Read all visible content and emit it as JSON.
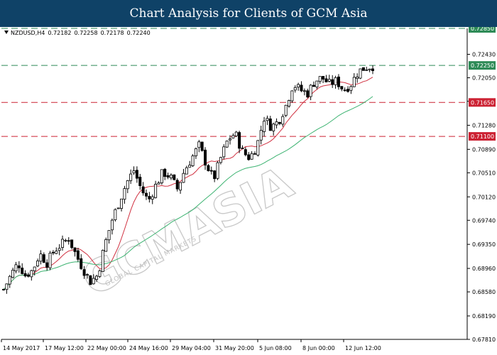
{
  "header": {
    "title": "Chart Analysis for Clients of GCM Asia"
  },
  "symbol": {
    "name": "NZDUSD,H4",
    "open": "0.72182",
    "high": "0.72258",
    "low": "0.72178",
    "close": "0.72240"
  },
  "watermark": {
    "main": "GCMASIA",
    "sub": "GLOBAL CAPITAL MARKETS"
  },
  "chart_data": {
    "type": "candlestick",
    "title": "",
    "xlabel": "",
    "ylabel": "",
    "ylim": [
      0.6781,
      0.7285
    ],
    "y_ticks": [
      "0.72430",
      "0.72050",
      "0.71670",
      "0.71280",
      "0.70890",
      "0.70510",
      "0.70120",
      "0.69740",
      "0.69350",
      "0.68960",
      "0.68580",
      "0.68190",
      "0.67810"
    ],
    "x_ticks": [
      "14 May 2017",
      "17 May 12:00",
      "22 May 00:00",
      "24 May 16:00",
      "29 May 04:00",
      "31 May 20:00",
      "5 Jun 08:00",
      "8 Jun 00:00",
      "12 Jun 12:00"
    ],
    "levels": [
      {
        "value": 0.7285,
        "label": "0.72850",
        "color": "#2e8b57",
        "style": "dashed-green"
      },
      {
        "value": 0.7225,
        "label": "0.72250",
        "color": "#2e8b57",
        "style": "dashed-green"
      },
      {
        "value": 0.7165,
        "label": "0.71650",
        "color": "#cc2233",
        "style": "dashed-red"
      },
      {
        "value": 0.711,
        "label": "0.71100",
        "color": "#cc2233",
        "style": "dashed-red"
      }
    ],
    "close_path": [
      0.6862,
      0.6885,
      0.6905,
      0.6885,
      0.6893,
      0.692,
      0.6905,
      0.6925,
      0.6935,
      0.6945,
      0.6918,
      0.6895,
      0.6875,
      0.6885,
      0.6935,
      0.6975,
      0.7005,
      0.7035,
      0.7055,
      0.7025,
      0.7005,
      0.703,
      0.7052,
      0.7045,
      0.7025,
      0.7055,
      0.7075,
      0.7095,
      0.7065,
      0.704,
      0.7075,
      0.7105,
      0.7115,
      0.7085,
      0.7075,
      0.7095,
      0.714,
      0.7125,
      0.7135,
      0.716,
      0.7195,
      0.7185,
      0.718,
      0.72,
      0.7205,
      0.7195,
      0.72,
      0.7185,
      0.7195,
      0.7215,
      0.7222,
      0.7224
    ],
    "ma_red": {
      "color": "#d03040",
      "start": 0.6862,
      "end": 0.7215
    },
    "ma_green": {
      "color": "#3cb371",
      "start": 0.6895,
      "end": 0.7168
    },
    "colors": {
      "background": "#ffffff",
      "candle": "#000000",
      "header": "#0f4267",
      "axis": "#000000"
    }
  }
}
